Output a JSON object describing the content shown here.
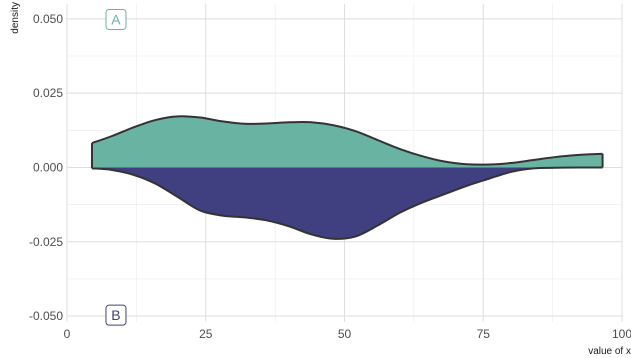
{
  "chart_data": {
    "type": "area",
    "xlabel": "value of x",
    "ylabel": "density",
    "xlim": [
      0,
      100
    ],
    "ylim": [
      -0.052,
      0.055
    ],
    "x_ticks": [
      0,
      25,
      50,
      75,
      100
    ],
    "x_tick_labels": [
      "0",
      "25",
      "50",
      "75",
      "100"
    ],
    "y_ticks": [
      -0.05,
      -0.025,
      0,
      0.025,
      0.05
    ],
    "y_tick_labels": [
      "-0.050",
      "-0.025",
      "0.000",
      "0.025",
      "0.050"
    ],
    "grid": true,
    "annotations": [
      {
        "text": "A",
        "x": 4.5,
        "y": 0.0498,
        "color": "#69b3a2"
      },
      {
        "text": "B",
        "x": 4.5,
        "y": -0.0497,
        "color": "#404080"
      }
    ],
    "series": [
      {
        "fill": "#69b3a2",
        "x": [
          4.5,
          8,
          12,
          16,
          20,
          24,
          28,
          32,
          36,
          40,
          44,
          48,
          52,
          56,
          60,
          64,
          68,
          72,
          76,
          80,
          84,
          88,
          92,
          96.5
        ],
        "y": [
          0.0082,
          0.0105,
          0.0135,
          0.016,
          0.0172,
          0.0168,
          0.0155,
          0.0147,
          0.0148,
          0.0152,
          0.0152,
          0.0142,
          0.0122,
          0.0092,
          0.0062,
          0.0038,
          0.002,
          0.0011,
          0.001,
          0.0015,
          0.0025,
          0.0035,
          0.0042,
          0.0046
        ]
      },
      {
        "fill": "#404080",
        "x": [
          4.5,
          8,
          12,
          16,
          20,
          24,
          28,
          32,
          36,
          40,
          44,
          48,
          52,
          56,
          60,
          64,
          68,
          72,
          76,
          80,
          84,
          88,
          92,
          96.5
        ],
        "y": [
          -0.0003,
          -0.0008,
          -0.0025,
          -0.0055,
          -0.01,
          -0.0145,
          -0.0162,
          -0.0168,
          -0.0178,
          -0.0198,
          -0.0225,
          -0.024,
          -0.0232,
          -0.0195,
          -0.0152,
          -0.0118,
          -0.009,
          -0.0062,
          -0.0038,
          -0.0015,
          -0.0003,
          -0.0001,
          0,
          0
        ]
      }
    ]
  }
}
